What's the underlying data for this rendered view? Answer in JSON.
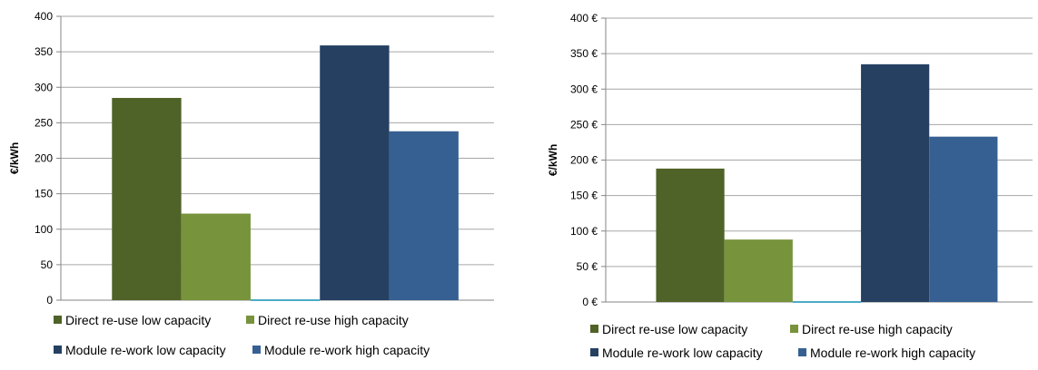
{
  "colors": {
    "direct_low": "#4F6228",
    "direct_high": "#77933C",
    "module_low": "#254061",
    "module_high": "#376092",
    "gap_line": "#4BACC6",
    "gridline": "#A6A6A6",
    "axis": "#868686"
  },
  "chart_data": [
    {
      "type": "bar",
      "ylabel": "€/kWh",
      "ylim": [
        0,
        400
      ],
      "yticks": [
        "0",
        "50",
        "100",
        "150",
        "200",
        "250",
        "300",
        "350",
        "400"
      ],
      "grid": true,
      "legend_position": "bottom",
      "series": [
        {
          "name": "Direct re-use low capacity",
          "values": [
            285
          ]
        },
        {
          "name": "Direct re-use high capacity",
          "values": [
            122
          ]
        },
        {
          "name": "Module re-work low capacity",
          "values": [
            359
          ]
        },
        {
          "name": "Module re-work high capacity",
          "values": [
            238
          ]
        }
      ]
    },
    {
      "type": "bar",
      "ylabel": "€/kWh",
      "ylim": [
        0,
        400
      ],
      "yticks": [
        "0 €",
        "50 €",
        "100 €",
        "150 €",
        "200 €",
        "250 €",
        "300 €",
        "350 €",
        "400 €"
      ],
      "grid": true,
      "legend_position": "bottom",
      "series": [
        {
          "name": "Direct re-use low capacity",
          "values": [
            188
          ]
        },
        {
          "name": "Direct re-use high capacity",
          "values": [
            88
          ]
        },
        {
          "name": "Module re-work low capacity",
          "values": [
            335
          ]
        },
        {
          "name": "Module re-work high capacity",
          "values": [
            233
          ]
        }
      ]
    }
  ]
}
